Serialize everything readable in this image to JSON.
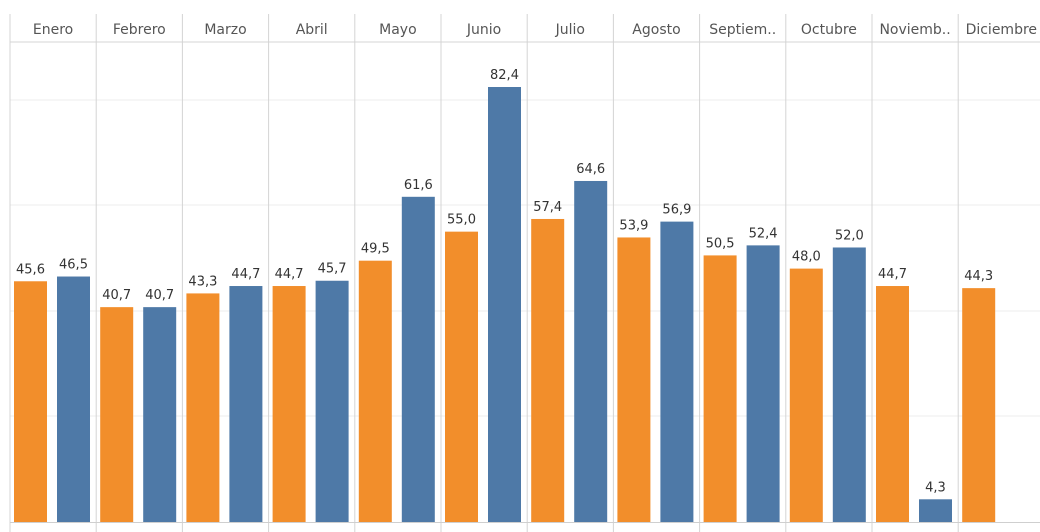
{
  "chart_data": {
    "type": "bar",
    "categories": [
      "Enero",
      "Febrero",
      "Marzo",
      "Abril",
      "Mayo",
      "Junio",
      "Julio",
      "Agosto",
      "Septiem..",
      "Octubre",
      "Noviemb..",
      "Diciembre"
    ],
    "series": [
      {
        "color": "#f28e2b",
        "values": [
          45.6,
          40.7,
          43.3,
          44.7,
          49.5,
          55.0,
          57.4,
          53.9,
          50.5,
          48.0,
          44.7,
          44.3
        ]
      },
      {
        "color": "#4e79a7",
        "values": [
          46.5,
          40.7,
          44.7,
          45.7,
          61.6,
          82.4,
          64.6,
          56.9,
          52.4,
          52.0,
          4.3,
          null
        ]
      }
    ],
    "data_labels": [
      [
        "45,6",
        "40,7",
        "43,3",
        "44,7",
        "49,5",
        "55,0",
        "57,4",
        "53,9",
        "50,5",
        "48,0",
        "44,7",
        "44,3"
      ],
      [
        "46,5",
        "40,7",
        "44,7",
        "45,7",
        "61,6",
        "82,4",
        "64,6",
        "56,9",
        "52,4",
        "52,0",
        "4,3",
        ""
      ]
    ],
    "ylim": [
      0,
      92
    ],
    "grid": true
  }
}
